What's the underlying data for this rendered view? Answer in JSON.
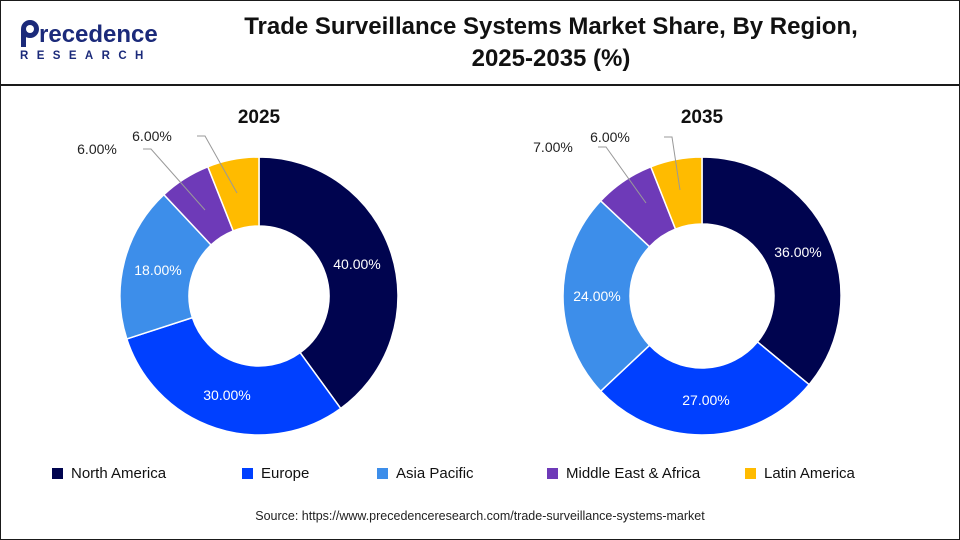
{
  "title_line1": "Trade Surveillance Systems Market Share, By Region,",
  "title_line2": "2025-2035 (%)",
  "logo": {
    "name": "Precedence",
    "tagline": "RESEARCH"
  },
  "colors": {
    "North America": "#00044f",
    "Europe": "#0040ff",
    "Asia Pacific": "#3d8eea",
    "Middle East & Africa": "#6e3ab8",
    "Latin America": "#ffbb00"
  },
  "chart_data": [
    {
      "type": "pie",
      "title": "2025",
      "categories": [
        "North America",
        "Europe",
        "Asia Pacific",
        "Middle East & Africa",
        "Latin America"
      ],
      "values": [
        40,
        30,
        18,
        6,
        6
      ],
      "labels": [
        "40.00%",
        "30.00%",
        "18.00%",
        "6.00%",
        "6.00%"
      ]
    },
    {
      "type": "pie",
      "title": "2035",
      "categories": [
        "North America",
        "Europe",
        "Asia Pacific",
        "Middle East & Africa",
        "Latin America"
      ],
      "values": [
        36,
        27,
        24,
        7,
        6
      ],
      "labels": [
        "36.00%",
        "27.00%",
        "24.00%",
        "7.00%",
        "6.00%"
      ]
    }
  ],
  "legend": [
    "North America",
    "Europe",
    "Asia Pacific",
    "Middle East & Africa",
    "Latin America"
  ],
  "source": "Source: https://www.precedenceresearch.com/trade-surveillance-systems-market"
}
